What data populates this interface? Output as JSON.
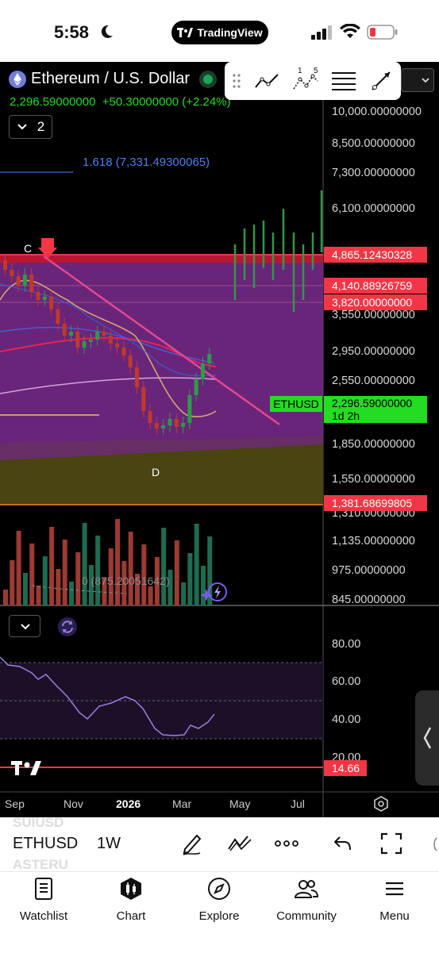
{
  "status_bar": {
    "time": "5:58",
    "app_badge": "TradingView"
  },
  "header": {
    "symbol_title": "Ethereum / U.S. Dollar",
    "price_change_line": "2,296.59000000  +50.30000000 (+2.24%)",
    "collapse_count": "2"
  },
  "drawing_toolbar": {
    "tools": [
      "trend-line-tool",
      "pattern-tool",
      "fib-tool",
      "ray-tool"
    ],
    "pattern_labels": [
      "1",
      "5"
    ]
  },
  "fib_label": "1.618 (7,331.49300065)",
  "wave_labels": {
    "c": "C",
    "d": "D"
  },
  "volume_label": "0 (875.20051642)",
  "price_axis": [
    "10,000.00000000",
    "8,500.00000000",
    "7,300.00000000",
    "6,100.00000000",
    "3,550.00000000",
    "2,950.00000000",
    "2,550.00000000",
    "1,850.00000000",
    "1,550.00000000",
    "1,310.00000000",
    "1,135.00000000",
    "975.00000000",
    "845.00000000"
  ],
  "price_tags": {
    "level1": "4,865.12430328",
    "level2": "4,140.88926759",
    "level3": "3,820.00000000",
    "level4": "1,381.68699805",
    "symbol": "ETHUSD",
    "current_price": "2,296.59000000",
    "countdown": "1d 2h"
  },
  "oscillator_axis": [
    "80.00",
    "60.00",
    "40.00",
    "20.00"
  ],
  "oscillator_tag": "14.66",
  "time_axis": [
    "Sep",
    "Nov",
    "2026",
    "Mar",
    "May",
    "Jul"
  ],
  "bottom_bar": {
    "ghost_top": "SUIUSD",
    "symbol": "ETHUSD",
    "ghost_bottom": "ASTERU",
    "interval": "1W"
  },
  "tabs": [
    {
      "label": "Watchlist",
      "icon": "watchlist-icon"
    },
    {
      "label": "Chart",
      "icon": "chart-icon"
    },
    {
      "label": "Explore",
      "icon": "compass-icon"
    },
    {
      "label": "Community",
      "icon": "community-icon"
    },
    {
      "label": "Menu",
      "icon": "menu-icon"
    }
  ],
  "colors": {
    "bull": "#2e9a46",
    "bear": "#c0392b",
    "resistance": "#f23645",
    "zone": "#7b2b8f",
    "lower_zone": "#4a4312",
    "rsi": "#9b7fe0",
    "price_green": "#22dd22"
  }
}
